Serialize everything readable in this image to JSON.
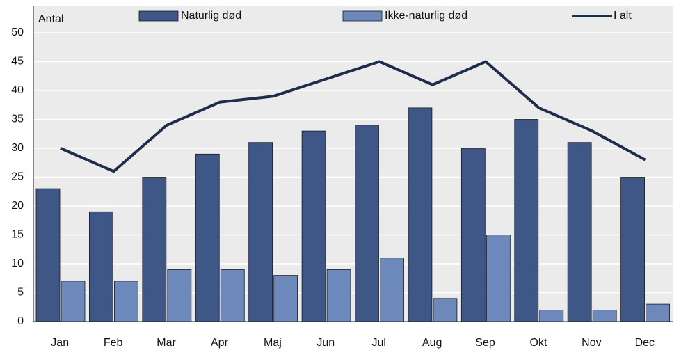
{
  "chart_data": {
    "type": "bar",
    "y_label": "Antal",
    "categories": [
      "Jan",
      "Feb",
      "Mar",
      "Apr",
      "Maj",
      "Jun",
      "Jul",
      "Aug",
      "Sep",
      "Okt",
      "Nov",
      "Dec"
    ],
    "series": [
      {
        "name": "Naturlig død",
        "color": "#3f5787",
        "values": [
          23,
          19,
          25,
          29,
          31,
          33,
          34,
          37,
          30,
          35,
          31,
          25
        ]
      },
      {
        "name": "Ikke-naturlig død",
        "color": "#6d88bb",
        "values": [
          7,
          7,
          9,
          9,
          8,
          9,
          11,
          4,
          15,
          2,
          2,
          3
        ]
      },
      {
        "name": "I alt",
        "color": "#1f2d4d",
        "type": "line",
        "values": [
          30,
          26,
          34,
          38,
          39,
          42,
          45,
          41,
          45,
          37,
          33,
          28
        ]
      }
    ],
    "ylim": [
      0,
      50
    ],
    "yticks": [
      0,
      5,
      10,
      15,
      20,
      25,
      30,
      35,
      40,
      45,
      50
    ],
    "grid": true
  }
}
